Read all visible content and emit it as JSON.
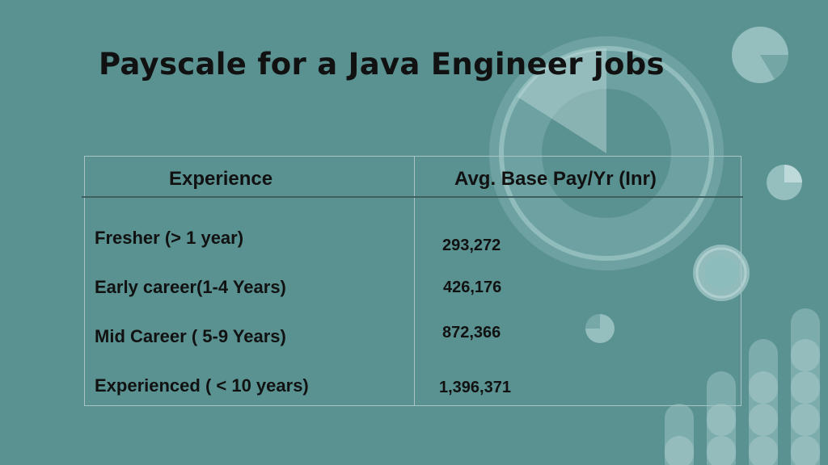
{
  "title": "Payscale for a Java Engineer jobs",
  "table": {
    "headers": [
      "Experience",
      "Avg. Base Pay/Yr (Inr)"
    ],
    "rows": [
      {
        "experience": "Fresher (> 1 year)",
        "pay": "293,272"
      },
      {
        "experience": "Early career(1-4 Years)",
        "pay": "426,176"
      },
      {
        "experience": "Mid Career ( 5-9 Years)",
        "pay": "872,366"
      },
      {
        "experience": "Experienced ( < 10 years)",
        "pay": "1,396,371"
      }
    ]
  },
  "colors": {
    "background": "#5a9191",
    "decoration": "#a9cdcd",
    "text": "#111111"
  }
}
